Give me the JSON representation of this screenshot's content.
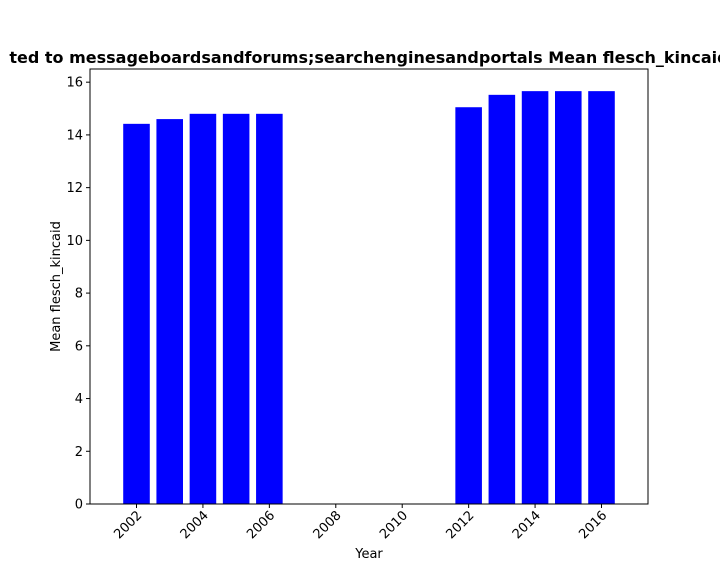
{
  "chart_data": {
    "type": "bar",
    "title": "ted to messageboardsandforums;searchenginesandportals Mean flesch_kincaid",
    "xlabel": "Year",
    "ylabel": "Mean flesch_kincaid",
    "x": [
      2002,
      2003,
      2004,
      2005,
      2006,
      2012,
      2013,
      2014,
      2015,
      2016
    ],
    "values": [
      14.42,
      14.6,
      14.8,
      14.8,
      14.8,
      15.05,
      15.52,
      15.66,
      15.66,
      15.66
    ],
    "bar_color": "#0000ff",
    "xticks": [
      "2002",
      "2004",
      "2006",
      "2008",
      "2010",
      "2012",
      "2014",
      "2016"
    ],
    "yticks": [
      "0",
      "2",
      "4",
      "6",
      "8",
      "10",
      "12",
      "14",
      "16"
    ],
    "xlim": [
      2000.6,
      2017.4
    ],
    "ylim": [
      0,
      16.5
    ],
    "grid": false
  }
}
